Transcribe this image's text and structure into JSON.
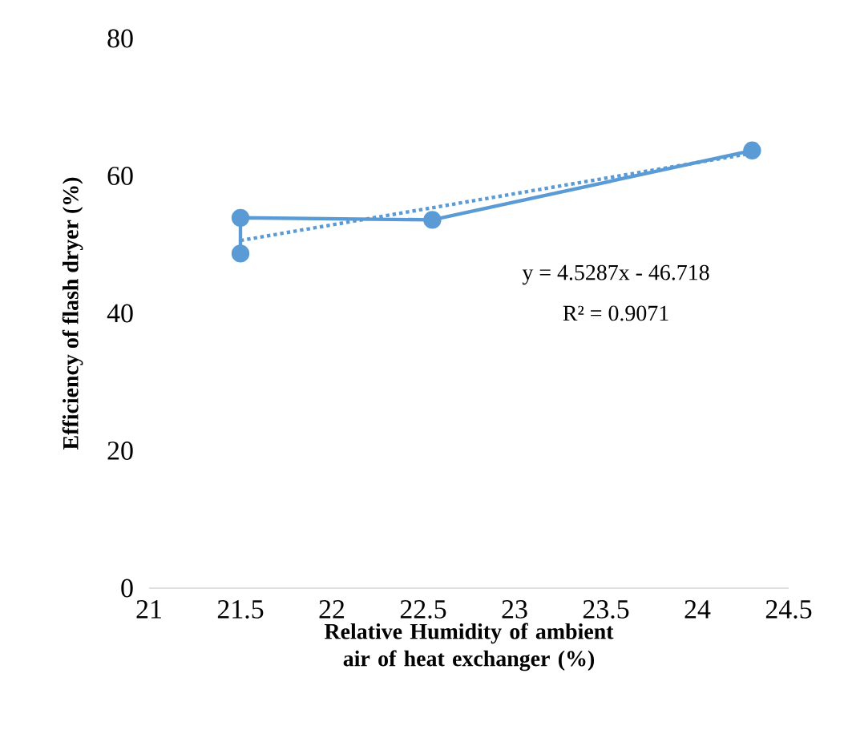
{
  "chart_data": {
    "type": "line",
    "xlabel": "Relative Humidity of ambient air of heat exchanger (%)",
    "ylabel": "Efficiency of flash dryer (%)",
    "xlim": [
      21,
      24.5
    ],
    "xticks": [
      21,
      21.5,
      22,
      22.5,
      23,
      23.5,
      24,
      24.5
    ],
    "ylim": [
      0,
      80
    ],
    "yticks": [
      0,
      20,
      40,
      60,
      80
    ],
    "grid": false,
    "series": [
      {
        "color": "#5b9bd5",
        "x": [
          21.5,
          21.5,
          22.55,
          24.3
        ],
        "values": [
          48.7,
          53.9,
          53.6,
          63.7
        ],
        "marker": "circle",
        "line_style": "solid"
      },
      {
        "color": "#5b9bd5",
        "x": [
          21.5,
          24.3
        ],
        "values": [
          50.6,
          63.3
        ],
        "marker": "none",
        "line_style": "dotted"
      }
    ],
    "annotations": [
      "y = 4.5287x - 46.718",
      "R² = 0.9071"
    ]
  }
}
